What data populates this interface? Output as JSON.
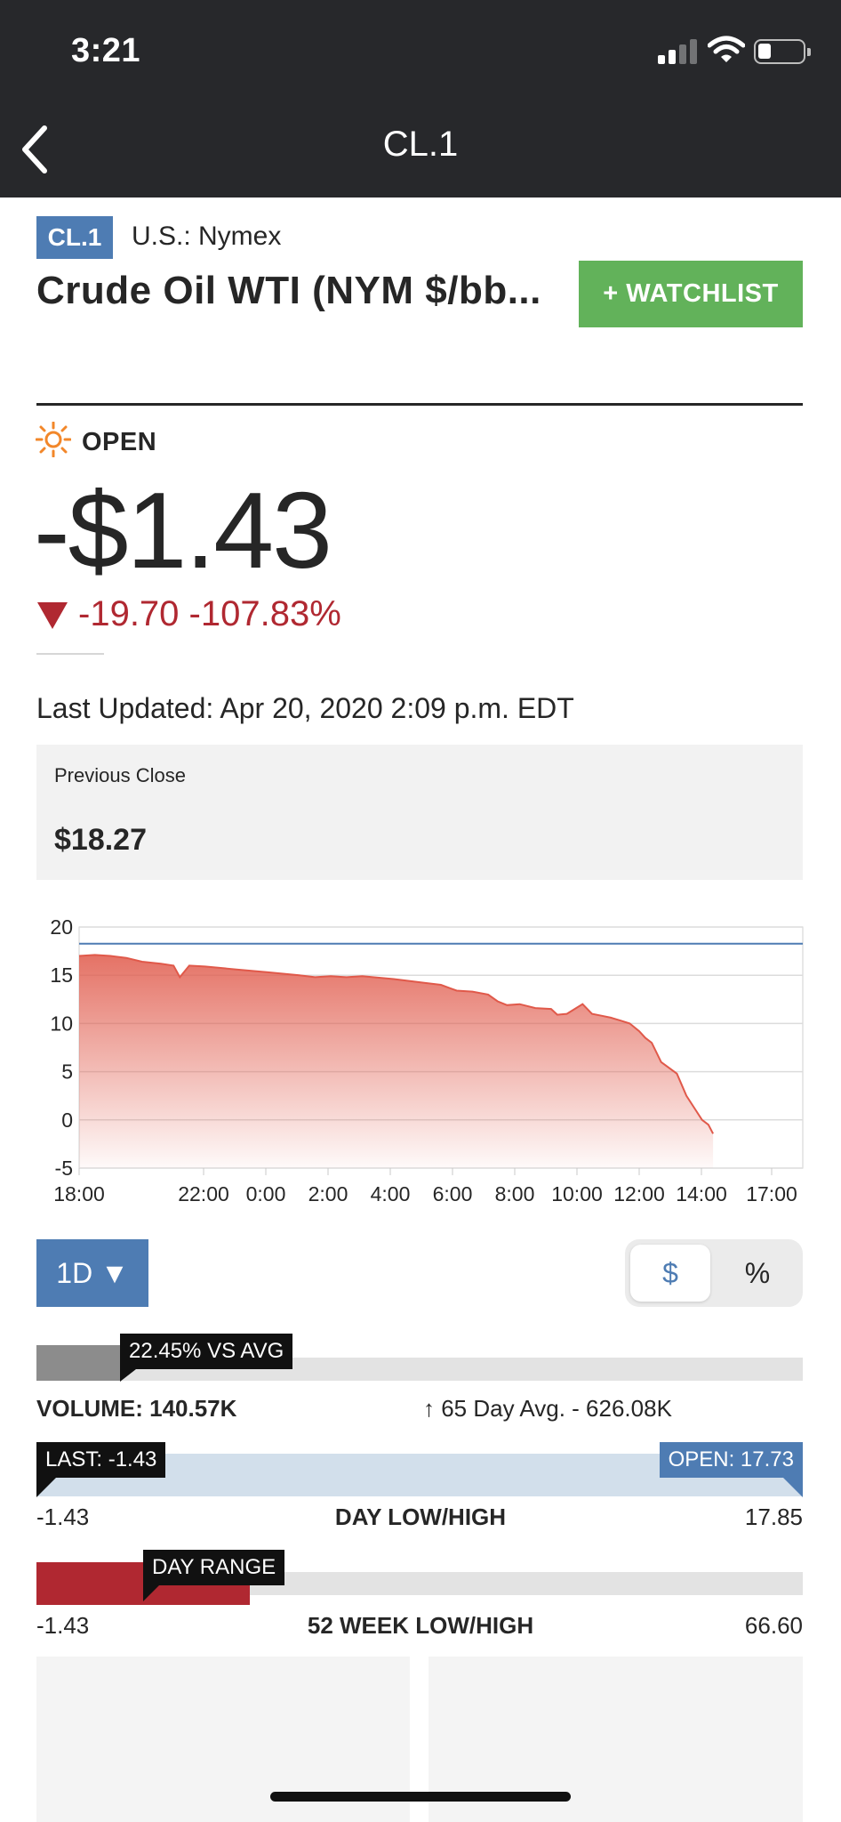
{
  "status_bar": {
    "time": "3:21"
  },
  "nav": {
    "title": "CL.1"
  },
  "quote": {
    "ticker": "CL.1",
    "exchange": "U.S.: Nymex",
    "name": "Crude Oil WTI (NYM $/bb...",
    "watchlist_label": "+ WATCHLIST",
    "market_status": "OPEN",
    "price": "-$1.43",
    "change": "-19.70 -107.83%",
    "last_updated": "Last Updated: Apr 20, 2020 2:09 p.m. EDT",
    "previous_close_label": "Previous Close",
    "previous_close_value": "$18.27"
  },
  "colors": {
    "header_bg": "#27282b",
    "accent_blue": "#4e7cb3",
    "watchlist_green": "#62b25a",
    "negative_red": "#b02831",
    "chart_line": "#e0594a"
  },
  "chart_data": {
    "type": "area",
    "x_tick_labels": [
      "18:00",
      "22:00",
      "0:00",
      "2:00",
      "4:00",
      "6:00",
      "8:00",
      "10:00",
      "12:00",
      "14:00",
      "17:00"
    ],
    "y_tick_labels": [
      "20",
      "15",
      "10",
      "5",
      "0",
      "-5"
    ],
    "ylim": [
      -5,
      20
    ],
    "previous_close_line": 18.27,
    "grid": true,
    "series": [
      {
        "hours_from_start": [
          0,
          0.5,
          1,
          1.5,
          2,
          2.6,
          3.0,
          3.2,
          3.5,
          4,
          5,
          6,
          7,
          7.5,
          8,
          8.5,
          9,
          10,
          11,
          11.5,
          12,
          12.5,
          13,
          13.3,
          13.6,
          14,
          14.5,
          15,
          15.2,
          15.5,
          16,
          16.3,
          16.6,
          16.9,
          17.2,
          17.5,
          17.8,
          18.0,
          18.2,
          18.5,
          19.0,
          19.3,
          19.6,
          19.8,
          20.0,
          20.15
        ],
        "values": [
          17.0,
          17.1,
          17.0,
          16.8,
          16.4,
          16.2,
          16.0,
          14.8,
          16.0,
          15.9,
          15.6,
          15.3,
          15.0,
          14.8,
          14.9,
          14.8,
          14.9,
          14.6,
          14.2,
          14.0,
          13.4,
          13.3,
          13.0,
          12.3,
          11.9,
          12.0,
          11.6,
          11.5,
          10.9,
          11.0,
          12.0,
          11.0,
          10.8,
          10.6,
          10.3,
          10.0,
          9.2,
          8.5,
          8.0,
          6.0,
          4.8,
          2.5,
          1.0,
          0.0,
          -0.5,
          -1.43
        ]
      }
    ]
  },
  "controls": {
    "range_label": "1D ▼",
    "toggle_dollar": "$",
    "toggle_percent": "%"
  },
  "volume": {
    "vs_avg_flag": "22.45% VS AVG",
    "vs_avg_fraction": 0.2245,
    "volume_label": "VOLUME: 140.57K",
    "avg_label": "↑ 65 Day Avg. - 626.08K"
  },
  "day_range": {
    "last_flag": "LAST: -1.43",
    "open_flag": "OPEN: 17.73",
    "low": "-1.43",
    "label": "DAY LOW/HIGH",
    "high": "17.85"
  },
  "week_range": {
    "flag": "DAY RANGE",
    "low": "-1.43",
    "label": "52 WEEK LOW/HIGH",
    "high": "66.60"
  }
}
